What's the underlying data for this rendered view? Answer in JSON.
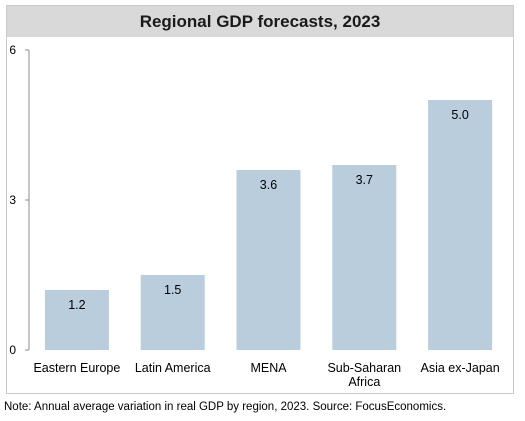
{
  "chart_data": {
    "type": "bar",
    "title": "Regional GDP forecasts, 2023",
    "categories": [
      "Eastern Europe",
      "Latin America",
      "MENA",
      "Sub-Saharan Africa",
      "Asia ex-Japan"
    ],
    "category_lines": [
      [
        "Eastern Europe"
      ],
      [
        "Latin America"
      ],
      [
        "MENA"
      ],
      [
        "Sub-Saharan",
        "Africa"
      ],
      [
        "Asia ex-Japan"
      ]
    ],
    "values": [
      1.2,
      1.5,
      3.6,
      3.7,
      5.0
    ],
    "value_labels": [
      "1.2",
      "1.5",
      "3.6",
      "3.7",
      "5.0"
    ],
    "yticks": [
      0,
      3,
      6
    ],
    "ytick_labels": [
      "0",
      "3",
      "6"
    ],
    "ylim": [
      0,
      6
    ],
    "xlabel": "",
    "ylabel": "",
    "grid": false,
    "legend": "none",
    "bar_color": "#b9cddc"
  },
  "note": "Note: Annual average variation in real GDP by region, 2023. Source: FocusEconomics."
}
